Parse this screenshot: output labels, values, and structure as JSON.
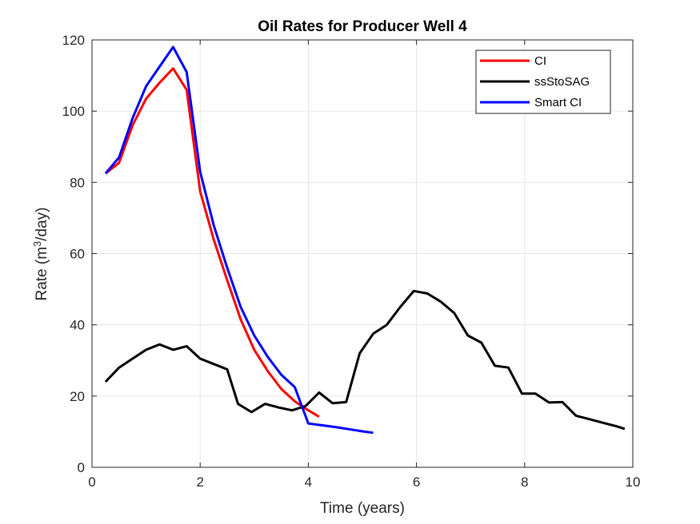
{
  "chart_data": {
    "type": "line",
    "title": "Oil Rates for Producer Well 4",
    "xlabel": "Time (years)",
    "ylabel_prefix": "Rate (m",
    "ylabel_superscript": "3",
    "ylabel_suffix": "/day)",
    "xlim": [
      0,
      10
    ],
    "ylim": [
      0,
      120
    ],
    "x_ticks": [
      0,
      2,
      4,
      6,
      8,
      10
    ],
    "y_ticks": [
      0,
      20,
      40,
      60,
      80,
      100,
      120
    ],
    "grid": true,
    "legend_position": "top-right",
    "series": [
      {
        "name": "CI",
        "color": "#ff0000",
        "x": [
          0.25,
          0.5,
          0.75,
          1.0,
          1.25,
          1.5,
          1.75,
          2.0,
          2.25,
          2.5,
          2.75,
          3.0,
          3.25,
          3.5,
          3.75,
          4.0,
          4.2
        ],
        "y": [
          82.5,
          85.5,
          96,
          103.5,
          108,
          112,
          106,
          77.5,
          64,
          52.5,
          41.5,
          33,
          27,
          22,
          18.5,
          16,
          14.2
        ]
      },
      {
        "name": "ssStoSAG",
        "color": "#000000",
        "x": [
          0.25,
          0.5,
          0.75,
          1.0,
          1.25,
          1.5,
          1.75,
          2.0,
          2.25,
          2.5,
          2.7,
          2.95,
          3.2,
          3.45,
          3.7,
          3.95,
          4.2,
          4.45,
          4.7,
          4.95,
          5.2,
          5.45,
          5.7,
          5.95,
          6.2,
          6.45,
          6.7,
          6.95,
          7.2,
          7.45,
          7.7,
          7.95,
          8.2,
          8.45,
          8.7,
          8.95,
          9.2,
          9.45,
          9.7,
          9.85
        ],
        "y": [
          24,
          28,
          30.5,
          33,
          34.5,
          33,
          34,
          30.5,
          29,
          27.5,
          17.8,
          15.5,
          17.8,
          16.8,
          16,
          17.2,
          21,
          18,
          18.3,
          32,
          37.5,
          40,
          45,
          49.5,
          48.8,
          46.5,
          43.3,
          37,
          35,
          28.5,
          28,
          20.7,
          20.7,
          18.2,
          18.3,
          14.5,
          13.5,
          12.5,
          11.5,
          10.8
        ]
      },
      {
        "name": "Smart CI",
        "color": "#0000ff",
        "x": [
          0.25,
          0.5,
          0.75,
          1.0,
          1.25,
          1.5,
          1.75,
          2.0,
          2.25,
          2.5,
          2.75,
          3.0,
          3.25,
          3.5,
          3.75,
          4.0,
          4.25,
          4.5,
          4.75,
          5.0,
          5.2
        ],
        "y": [
          82.5,
          87,
          98,
          107,
          112.5,
          118,
          111,
          83,
          68,
          56,
          45,
          37,
          31,
          26,
          22.5,
          12.3,
          11.8,
          11.3,
          10.7,
          10.1,
          9.7
        ]
      }
    ]
  }
}
